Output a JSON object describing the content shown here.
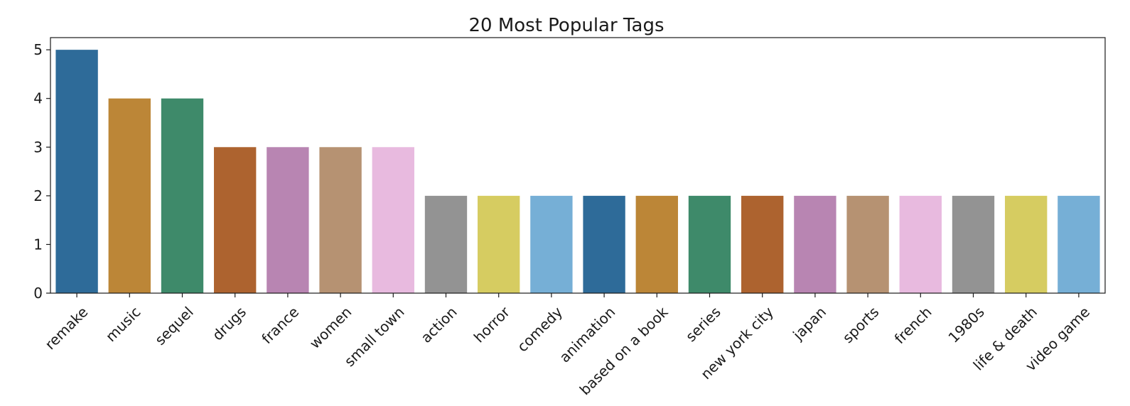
{
  "chart_data": {
    "type": "bar",
    "title": "20 Most Popular Tags",
    "xlabel": "",
    "ylabel": "",
    "ylim": [
      0,
      5.25
    ],
    "yticks": [
      0,
      1,
      2,
      3,
      4,
      5
    ],
    "grid": false,
    "categories": [
      "remake",
      "music",
      "sequel",
      "drugs",
      "france",
      "women",
      "small town",
      "action",
      "horror",
      "comedy",
      "animation",
      "based on a book",
      "series",
      "new york city",
      "japan",
      "sports",
      "french",
      "1980s",
      "life & death",
      "video game"
    ],
    "values": [
      5,
      4,
      4,
      3,
      3,
      3,
      3,
      2,
      2,
      2,
      2,
      2,
      2,
      2,
      2,
      2,
      2,
      2,
      2,
      2
    ],
    "colors": [
      "#2e6b99",
      "#bc8637",
      "#3e8a6a",
      "#ad632f",
      "#b885b2",
      "#b69272",
      "#e8badf",
      "#939393",
      "#d6cc61",
      "#76afd6"
    ]
  }
}
